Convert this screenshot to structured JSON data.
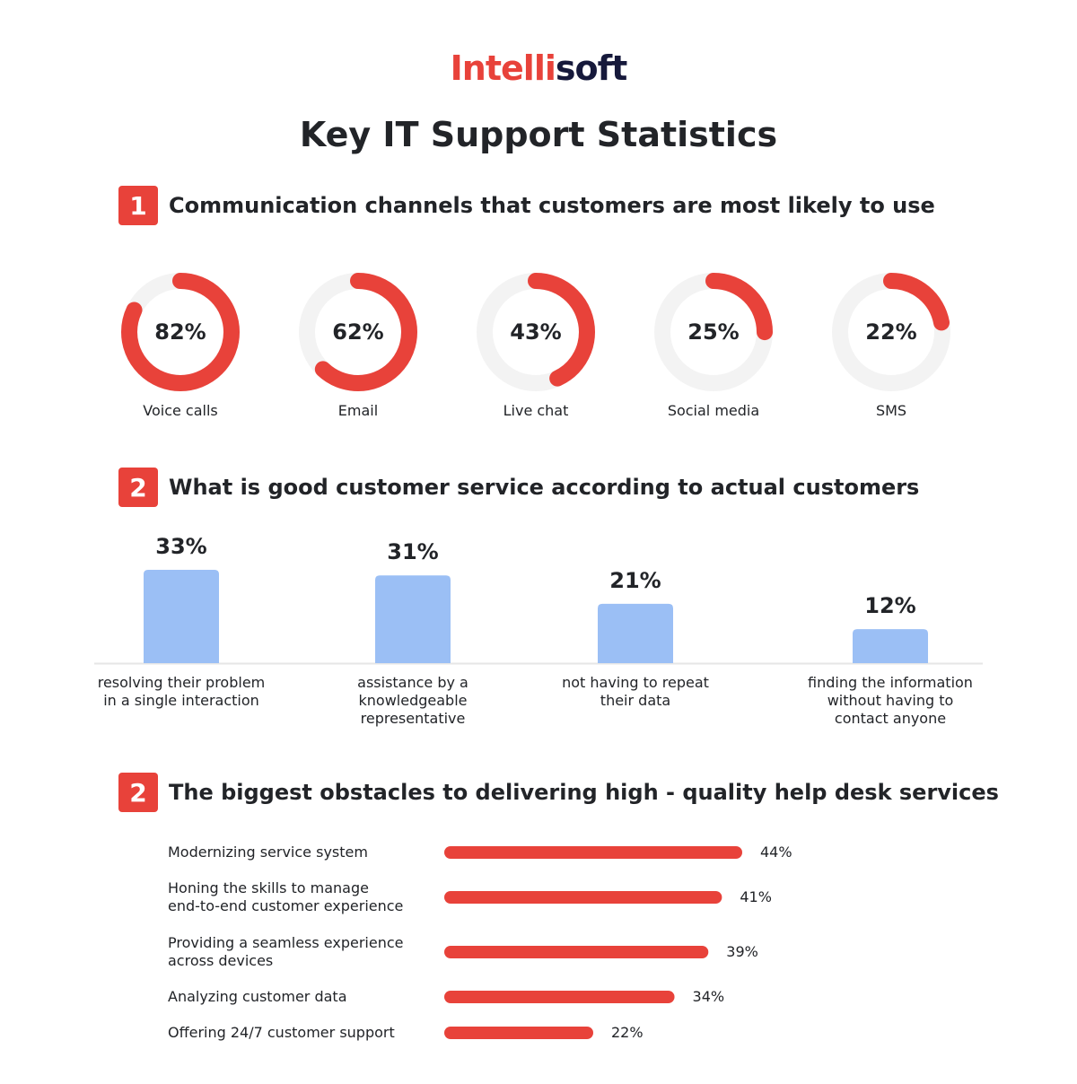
{
  "logo": {
    "part1": "Intelli",
    "part2": "soft"
  },
  "title": "Key IT Support Statistics",
  "colors": {
    "accent": "#e8423a",
    "bar_blue": "#9bbff5",
    "track": "#f3f3f3",
    "brand_dark": "#16193b"
  },
  "sections": [
    {
      "number": "1",
      "title": "Communication channels that customers are most likely to use"
    },
    {
      "number": "2",
      "title": "What is good customer service according to actual customers"
    },
    {
      "number": "2",
      "title": "The biggest obstacles to delivering high - quality help desk services"
    }
  ],
  "chart_data": [
    {
      "type": "pie",
      "style": "donut",
      "categories": [
        "Voice calls",
        "Email",
        "Live chat",
        "Social media",
        "SMS"
      ],
      "values": [
        82,
        62,
        43,
        25,
        22
      ],
      "value_labels": [
        "82%",
        "62%",
        "43%",
        "25%",
        "22%"
      ]
    },
    {
      "type": "bar",
      "categories": [
        "resolving their problem\nin a single interaction",
        "assistance by a\nknowledgeable\nrepresentative",
        "not having to repeat\ntheir data",
        "finding the information\nwithout having to\ncontact anyone"
      ],
      "values": [
        33,
        31,
        21,
        12
      ],
      "value_labels": [
        "33%",
        "31%",
        "21%",
        "12%"
      ]
    },
    {
      "type": "bar",
      "orientation": "horizontal",
      "categories": [
        "Modernizing service system",
        "Honing the skills to manage\nend-to-end customer experience",
        "Providing a seamless experience\nacross devices",
        "Analyzing customer data",
        "Offering 24/7 customer support"
      ],
      "values": [
        44,
        41,
        39,
        34,
        22
      ],
      "value_labels": [
        "44%",
        "41%",
        "39%",
        "34%",
        "22%"
      ]
    }
  ]
}
